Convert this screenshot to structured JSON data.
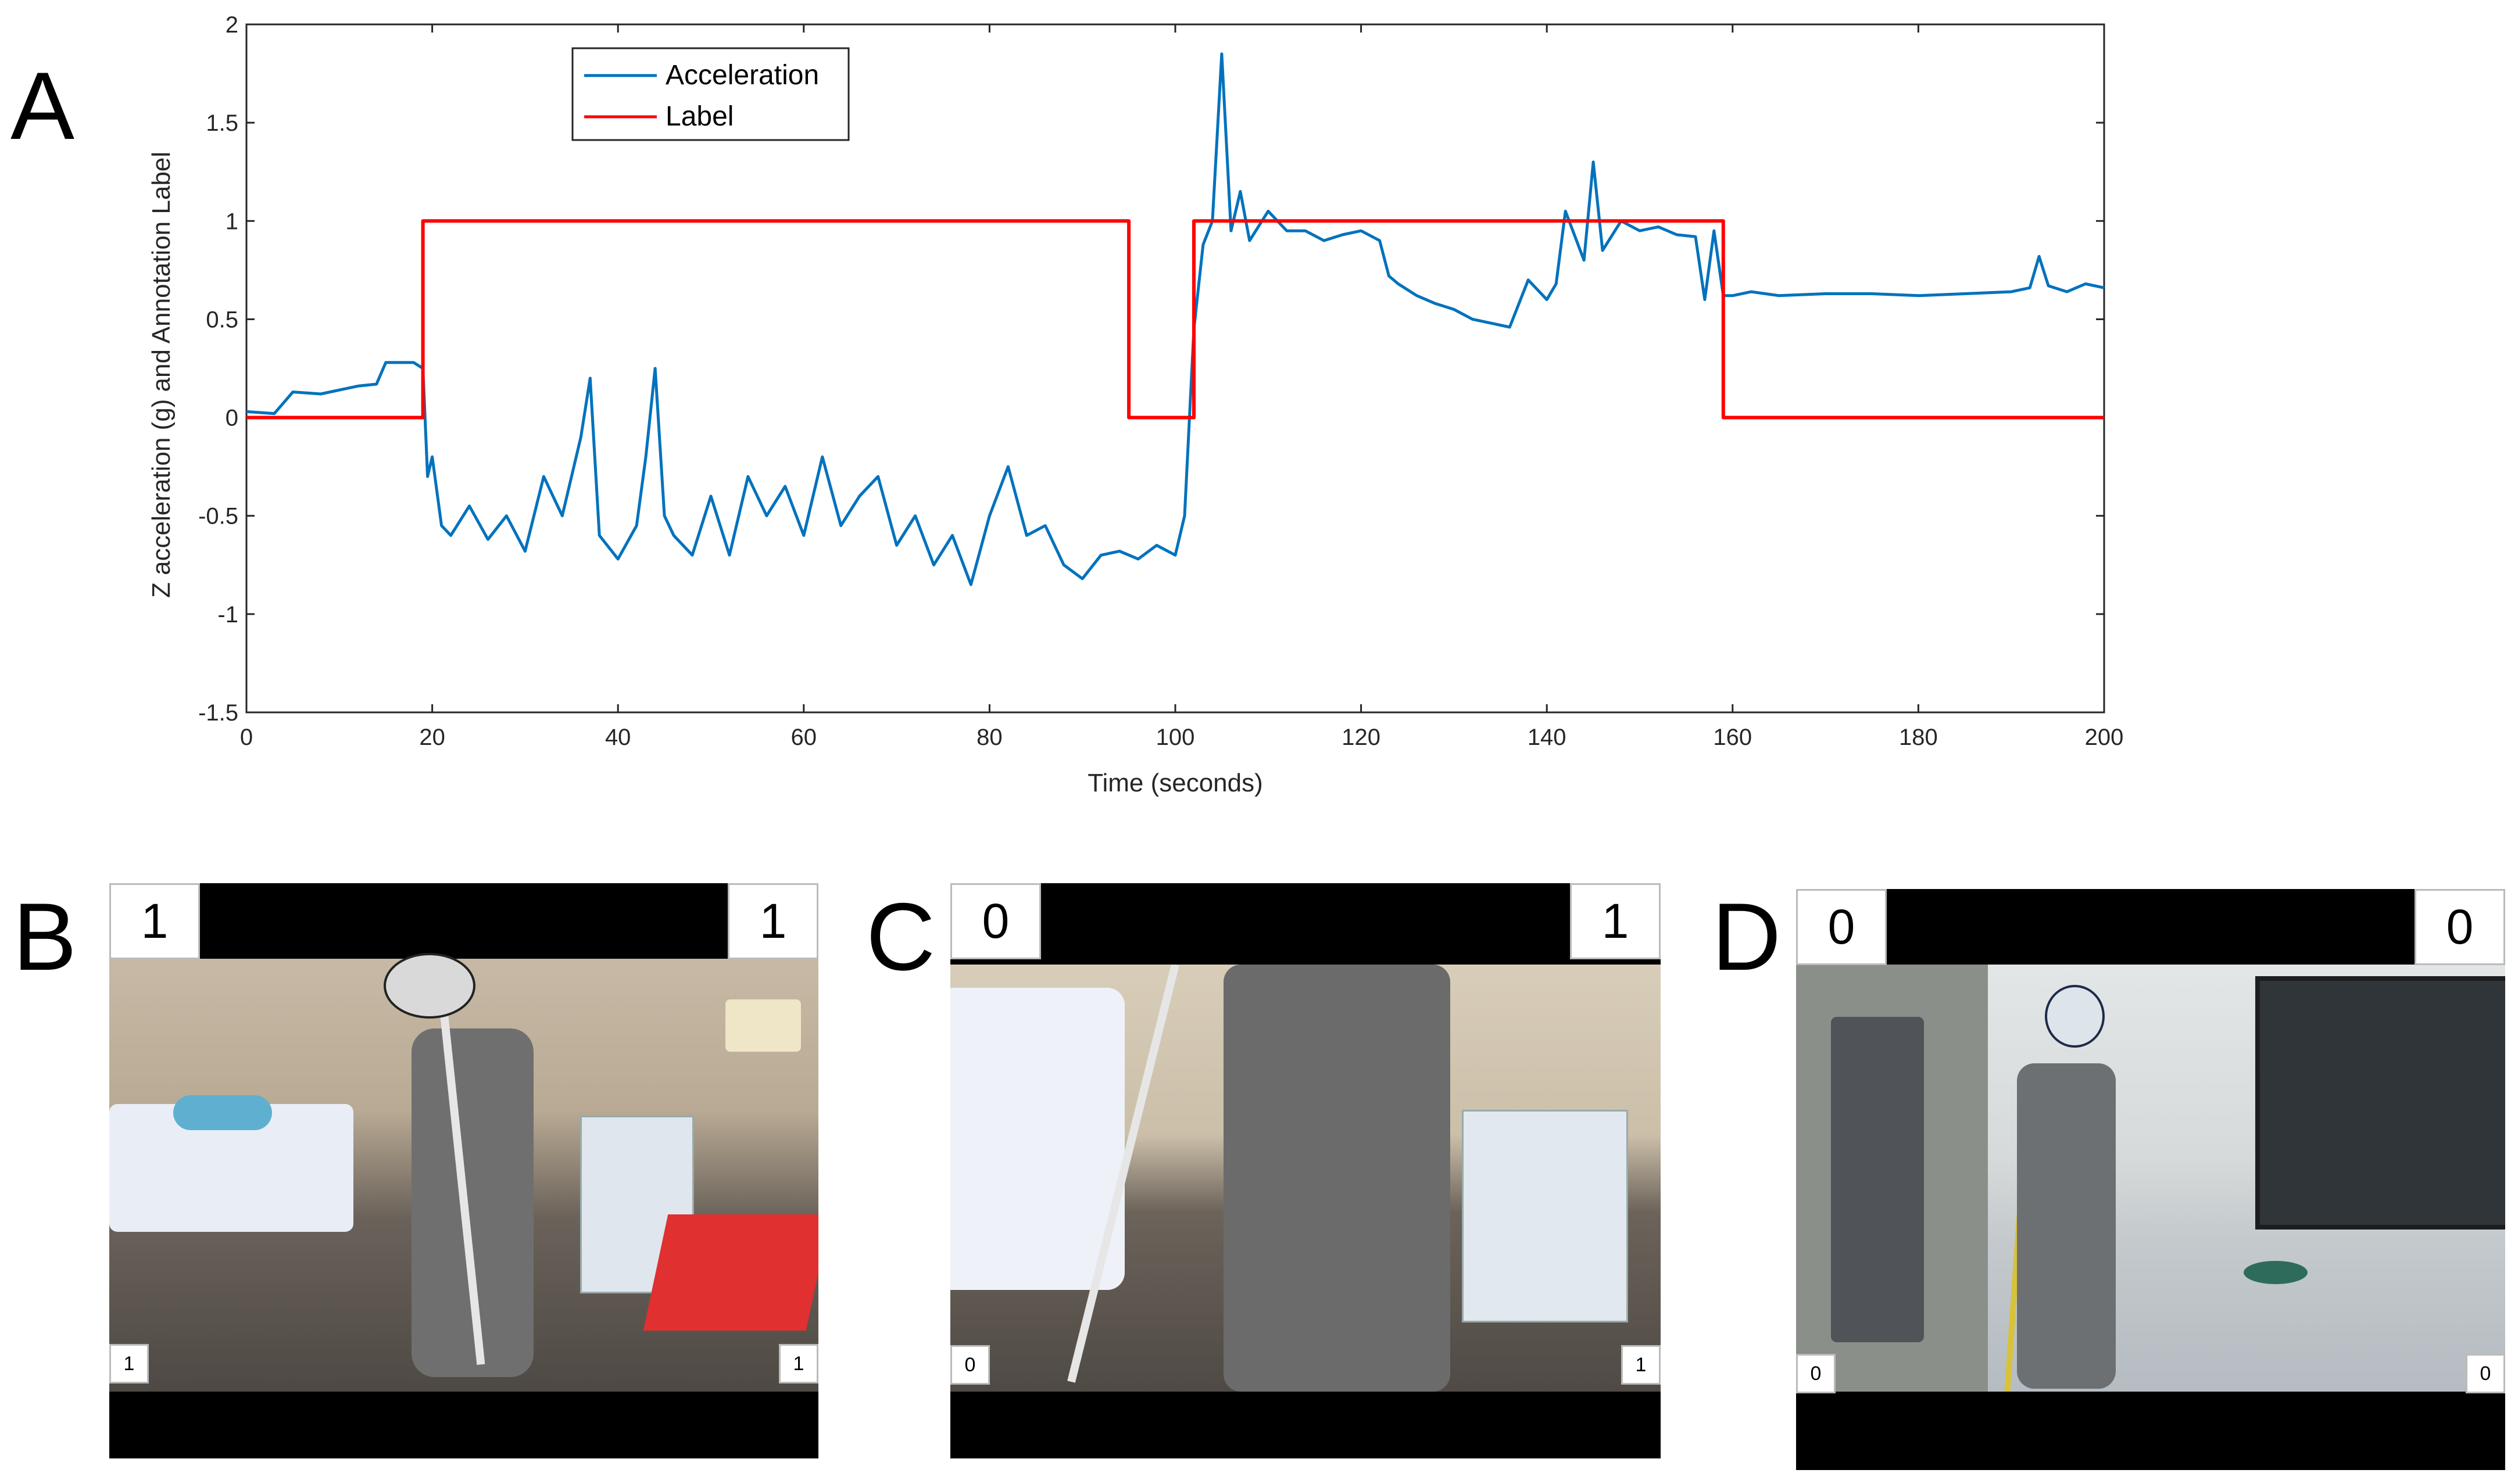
{
  "panel_letters": {
    "a": "A",
    "b": "B",
    "c": "C",
    "d": "D"
  },
  "chart_data": {
    "type": "line",
    "title": "",
    "xlabel": "Time (seconds)",
    "ylabel": "Z acceleration (g)  and Annotation Label",
    "xlim": [
      0,
      200
    ],
    "ylim": [
      -1.5,
      2
    ],
    "xticks": [
      0,
      20,
      40,
      60,
      80,
      100,
      120,
      140,
      160,
      180,
      200
    ],
    "yticks": [
      -1.5,
      -1,
      -0.5,
      0,
      0.5,
      1,
      1.5,
      2
    ],
    "xtick_labels": [
      "0",
      "20",
      "40",
      "60",
      "80",
      "100",
      "120",
      "140",
      "160",
      "180",
      "200"
    ],
    "ytick_labels": [
      "-1.5",
      "-1",
      "-0.5",
      "0",
      "0.5",
      "1",
      "1.5",
      "2"
    ],
    "grid": false,
    "legend_position": "top-left",
    "series": [
      {
        "name": "Acceleration",
        "color": "#0072BD",
        "x": [
          0,
          3,
          5,
          8,
          12,
          14,
          15,
          18,
          19,
          19.5,
          20,
          21,
          22,
          24,
          26,
          28,
          30,
          32,
          34,
          36,
          37,
          38,
          40,
          42,
          43,
          44,
          45,
          46,
          48,
          50,
          52,
          54,
          56,
          58,
          60,
          62,
          64,
          66,
          68,
          70,
          72,
          74,
          76,
          78,
          80,
          82,
          84,
          86,
          88,
          90,
          92,
          94,
          96,
          98,
          100,
          101,
          102,
          103,
          104,
          105,
          106,
          107,
          108,
          110,
          112,
          114,
          116,
          118,
          120,
          122,
          123,
          124,
          126,
          128,
          130,
          132,
          134,
          136,
          138,
          140,
          141,
          142,
          144,
          145,
          146,
          148,
          150,
          152,
          154,
          156,
          157,
          158,
          159,
          160,
          162,
          165,
          170,
          175,
          180,
          185,
          190,
          192,
          193,
          194,
          196,
          198,
          200
        ],
        "y": [
          0.03,
          0.02,
          0.13,
          0.12,
          0.16,
          0.17,
          0.28,
          0.28,
          0.25,
          -0.3,
          -0.2,
          -0.55,
          -0.6,
          -0.45,
          -0.62,
          -0.5,
          -0.68,
          -0.3,
          -0.5,
          -0.1,
          0.2,
          -0.6,
          -0.72,
          -0.55,
          -0.2,
          0.25,
          -0.5,
          -0.6,
          -0.7,
          -0.4,
          -0.7,
          -0.3,
          -0.5,
          -0.35,
          -0.6,
          -0.2,
          -0.55,
          -0.4,
          -0.3,
          -0.65,
          -0.5,
          -0.75,
          -0.6,
          -0.85,
          -0.5,
          -0.25,
          -0.6,
          -0.55,
          -0.75,
          -0.82,
          -0.7,
          -0.68,
          -0.72,
          -0.65,
          -0.7,
          -0.5,
          0.45,
          0.88,
          1.0,
          1.85,
          0.95,
          1.15,
          0.9,
          1.05,
          0.95,
          0.95,
          0.9,
          0.93,
          0.95,
          0.9,
          0.72,
          0.68,
          0.62,
          0.58,
          0.55,
          0.5,
          0.48,
          0.46,
          0.7,
          0.6,
          0.68,
          1.05,
          0.8,
          1.3,
          0.85,
          1.0,
          0.95,
          0.97,
          0.93,
          0.92,
          0.6,
          0.95,
          0.62,
          0.62,
          0.64,
          0.62,
          0.63,
          0.63,
          0.62,
          0.63,
          0.64,
          0.66,
          0.82,
          0.67,
          0.64,
          0.68,
          0.66
        ]
      },
      {
        "name": "Label",
        "color": "#FF0000",
        "x": [
          0,
          19,
          19,
          95,
          95,
          102,
          102,
          159,
          159,
          200
        ],
        "y": [
          0,
          0,
          1,
          1,
          0,
          0,
          1,
          1,
          0,
          0
        ]
      }
    ]
  },
  "panels": {
    "b": {
      "top_left": "1",
      "top_right": "1",
      "bottom_left": "1",
      "bottom_right": "1"
    },
    "c": {
      "top_left": "0",
      "top_right": "1",
      "bottom_left": "0",
      "bottom_right": "1"
    },
    "d": {
      "top_left": "0",
      "top_right": "0",
      "bottom_left": "0",
      "bottom_right": "0"
    }
  }
}
